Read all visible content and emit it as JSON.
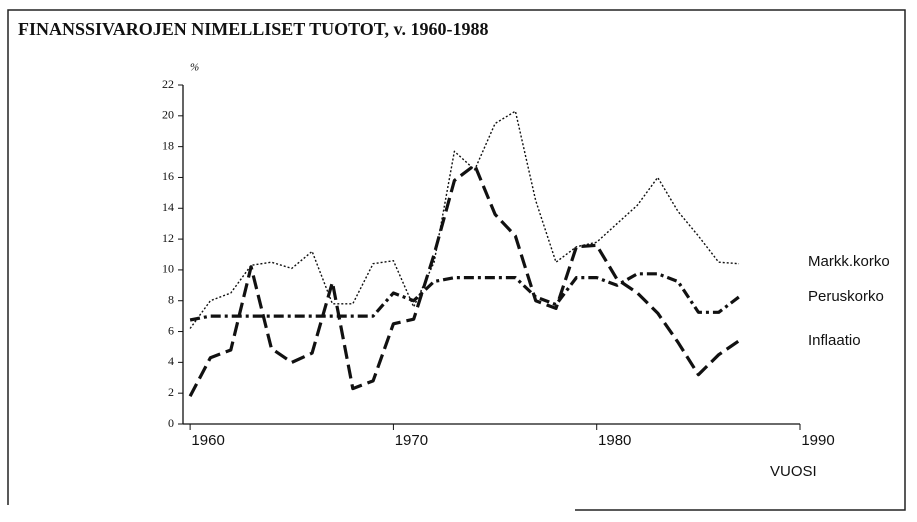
{
  "chart_data": {
    "type": "line",
    "title": "FINANSSIVAROJEN NIMELLISET TUOTOT, v. 1960-1988",
    "y_label": "%",
    "x_label": "VUOSI",
    "x": [
      1960,
      1961,
      1962,
      1963,
      1964,
      1965,
      1966,
      1967,
      1968,
      1969,
      1970,
      1971,
      1972,
      1973,
      1974,
      1975,
      1976,
      1977,
      1978,
      1979,
      1980,
      1981,
      1982,
      1983,
      1984,
      1985,
      1986,
      1987
    ],
    "series": [
      {
        "name": "Markk.korko",
        "color": "#111111",
        "style": "dotted",
        "values": [
          6.2,
          8.0,
          8.5,
          10.3,
          10.5,
          10.1,
          11.2,
          7.8,
          7.8,
          10.4,
          10.6,
          7.6,
          10.5,
          17.7,
          16.5,
          19.5,
          20.3,
          14.5,
          10.5,
          11.5,
          11.8,
          13.0,
          14.2,
          16.0,
          13.8,
          12.2,
          10.5,
          10.4
        ]
      },
      {
        "name": "Peruskorko",
        "color": "#111111",
        "style": "dashdot",
        "values": [
          6.75,
          7.0,
          7.0,
          7.0,
          7.0,
          7.0,
          7.0,
          7.0,
          7.0,
          7.0,
          8.5,
          8.0,
          9.25,
          9.5,
          9.5,
          9.5,
          9.5,
          8.25,
          7.75,
          9.5,
          9.5,
          9.0,
          9.75,
          9.75,
          9.25,
          7.25,
          7.25,
          8.25
        ]
      },
      {
        "name": "Inflaatio",
        "color": "#111111",
        "style": "dashed",
        "values": [
          1.8,
          4.3,
          4.8,
          10.2,
          4.9,
          4.0,
          4.6,
          9.2,
          2.3,
          2.8,
          6.5,
          6.8,
          11.0,
          15.8,
          16.8,
          13.6,
          12.2,
          8.0,
          7.5,
          11.5,
          11.6,
          9.4,
          8.5,
          7.2,
          5.3,
          3.2,
          4.5,
          5.4
        ]
      }
    ],
    "xlim": [
      1959.65,
      1990
    ],
    "ylim": [
      0,
      22
    ],
    "xticks": [
      1960,
      1970,
      1980,
      1990
    ],
    "yticks": [
      0,
      2,
      4,
      6,
      8,
      10,
      12,
      14,
      16,
      18,
      20,
      22
    ],
    "grid": false
  }
}
